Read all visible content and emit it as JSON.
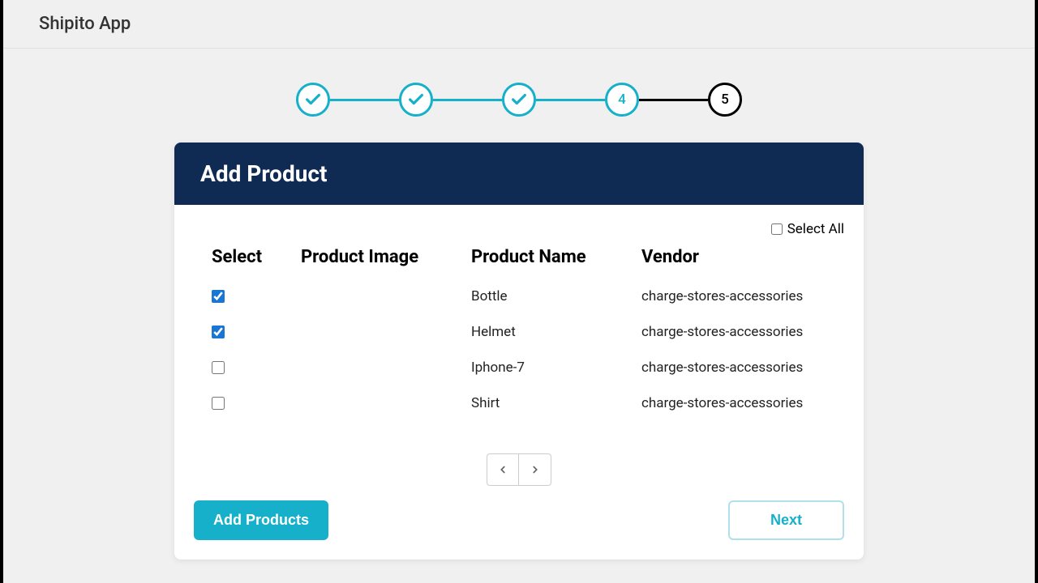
{
  "app": {
    "title": "Shipito App"
  },
  "stepper": {
    "steps": [
      {
        "state": "complete",
        "label": ""
      },
      {
        "state": "complete",
        "label": ""
      },
      {
        "state": "complete",
        "label": ""
      },
      {
        "state": "active",
        "label": "4"
      },
      {
        "state": "inactive",
        "label": "5"
      }
    ]
  },
  "card": {
    "title": "Add Product",
    "select_all_label": "Select All",
    "select_all_checked": false,
    "columns": {
      "select": "Select",
      "image": "Product Image",
      "name": "Product Name",
      "vendor": "Vendor"
    },
    "rows": [
      {
        "checked": true,
        "name": "Bottle",
        "vendor": "charge-stores-accessories"
      },
      {
        "checked": true,
        "name": "Helmet",
        "vendor": "charge-stores-accessories"
      },
      {
        "checked": false,
        "name": "Iphone-7",
        "vendor": "charge-stores-accessories"
      },
      {
        "checked": false,
        "name": "Shirt",
        "vendor": "charge-stores-accessories"
      }
    ],
    "buttons": {
      "add": "Add Products",
      "next": "Next"
    }
  },
  "colors": {
    "accent": "#16b0cb",
    "header_bg": "#0f2b53",
    "page_bg": "#f0f0f0",
    "checkbox_accent": "#1976d2"
  }
}
